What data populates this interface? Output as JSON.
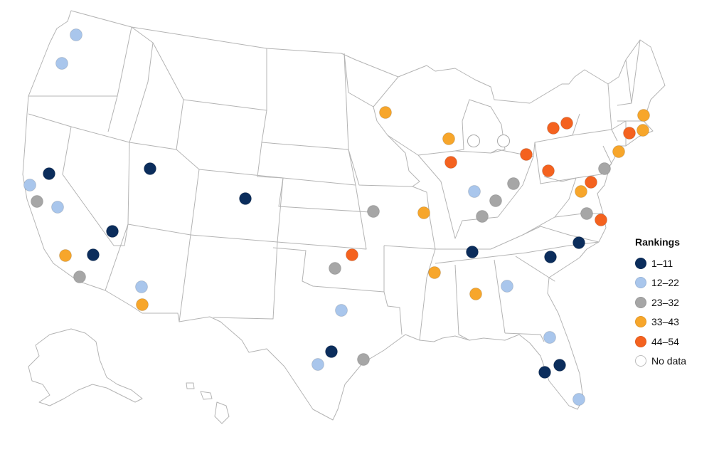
{
  "legend": {
    "title": "Rankings",
    "items": [
      {
        "label": "1–11",
        "color": "#0b2d5c"
      },
      {
        "label": "12–22",
        "color": "#a9c6ec"
      },
      {
        "label": "23–32",
        "color": "#a6a6a6"
      },
      {
        "label": "33–43",
        "color": "#f7a62b"
      },
      {
        "label": "44–54",
        "color": "#f4621f"
      },
      {
        "label": "No data",
        "color": "#ffffff"
      }
    ]
  },
  "markers": [
    {
      "id": "seattle",
      "rank_group": 1
    },
    {
      "id": "portland",
      "rank_group": 1
    },
    {
      "id": "sacramento",
      "rank_group": 0
    },
    {
      "id": "san-francisco",
      "rank_group": 1
    },
    {
      "id": "san-jose",
      "rank_group": 2
    },
    {
      "id": "fresno",
      "rank_group": 1
    },
    {
      "id": "los-angeles",
      "rank_group": 3
    },
    {
      "id": "riverside",
      "rank_group": 0
    },
    {
      "id": "san-diego",
      "rank_group": 2
    },
    {
      "id": "las-vegas",
      "rank_group": 0
    },
    {
      "id": "salt-lake-city",
      "rank_group": 0
    },
    {
      "id": "denver",
      "rank_group": 0
    },
    {
      "id": "phoenix",
      "rank_group": 1
    },
    {
      "id": "tucson",
      "rank_group": 3
    },
    {
      "id": "oklahoma-city",
      "rank_group": 4
    },
    {
      "id": "tulsa-area",
      "rank_group": 2
    },
    {
      "id": "dallas",
      "rank_group": 1
    },
    {
      "id": "austin",
      "rank_group": 0
    },
    {
      "id": "san-antonio",
      "rank_group": 1
    },
    {
      "id": "houston",
      "rank_group": 2
    },
    {
      "id": "kansas-city",
      "rank_group": 2
    },
    {
      "id": "st-louis",
      "rank_group": 3
    },
    {
      "id": "minneapolis",
      "rank_group": 3
    },
    {
      "id": "milwaukee",
      "rank_group": 3
    },
    {
      "id": "chicago",
      "rank_group": 4
    },
    {
      "id": "grand-rapids",
      "rank_group": 5
    },
    {
      "id": "detroit",
      "rank_group": 5
    },
    {
      "id": "indianapolis",
      "rank_group": 1
    },
    {
      "id": "louisville",
      "rank_group": 2
    },
    {
      "id": "cincinnati",
      "rank_group": 2
    },
    {
      "id": "columbus",
      "rank_group": 2
    },
    {
      "id": "cleveland",
      "rank_group": 4
    },
    {
      "id": "pittsburgh",
      "rank_group": 4
    },
    {
      "id": "buffalo",
      "rank_group": 4
    },
    {
      "id": "rochester",
      "rank_group": 4
    },
    {
      "id": "nashville",
      "rank_group": 0
    },
    {
      "id": "memphis",
      "rank_group": 3
    },
    {
      "id": "birmingham",
      "rank_group": 3
    },
    {
      "id": "atlanta",
      "rank_group": 1
    },
    {
      "id": "charlotte",
      "rank_group": 0
    },
    {
      "id": "raleigh",
      "rank_group": 0
    },
    {
      "id": "richmond",
      "rank_group": 2
    },
    {
      "id": "virginia-beach",
      "rank_group": 4
    },
    {
      "id": "washington-dc",
      "rank_group": 3
    },
    {
      "id": "baltimore",
      "rank_group": 4
    },
    {
      "id": "philadelphia",
      "rank_group": 2
    },
    {
      "id": "new-york",
      "rank_group": 3
    },
    {
      "id": "hartford",
      "rank_group": 4
    },
    {
      "id": "providence",
      "rank_group": 3
    },
    {
      "id": "boston",
      "rank_group": 3
    },
    {
      "id": "jacksonville",
      "rank_group": 1
    },
    {
      "id": "orlando",
      "rank_group": 0
    },
    {
      "id": "tampa",
      "rank_group": 0
    },
    {
      "id": "miami",
      "rank_group": 1
    }
  ]
}
